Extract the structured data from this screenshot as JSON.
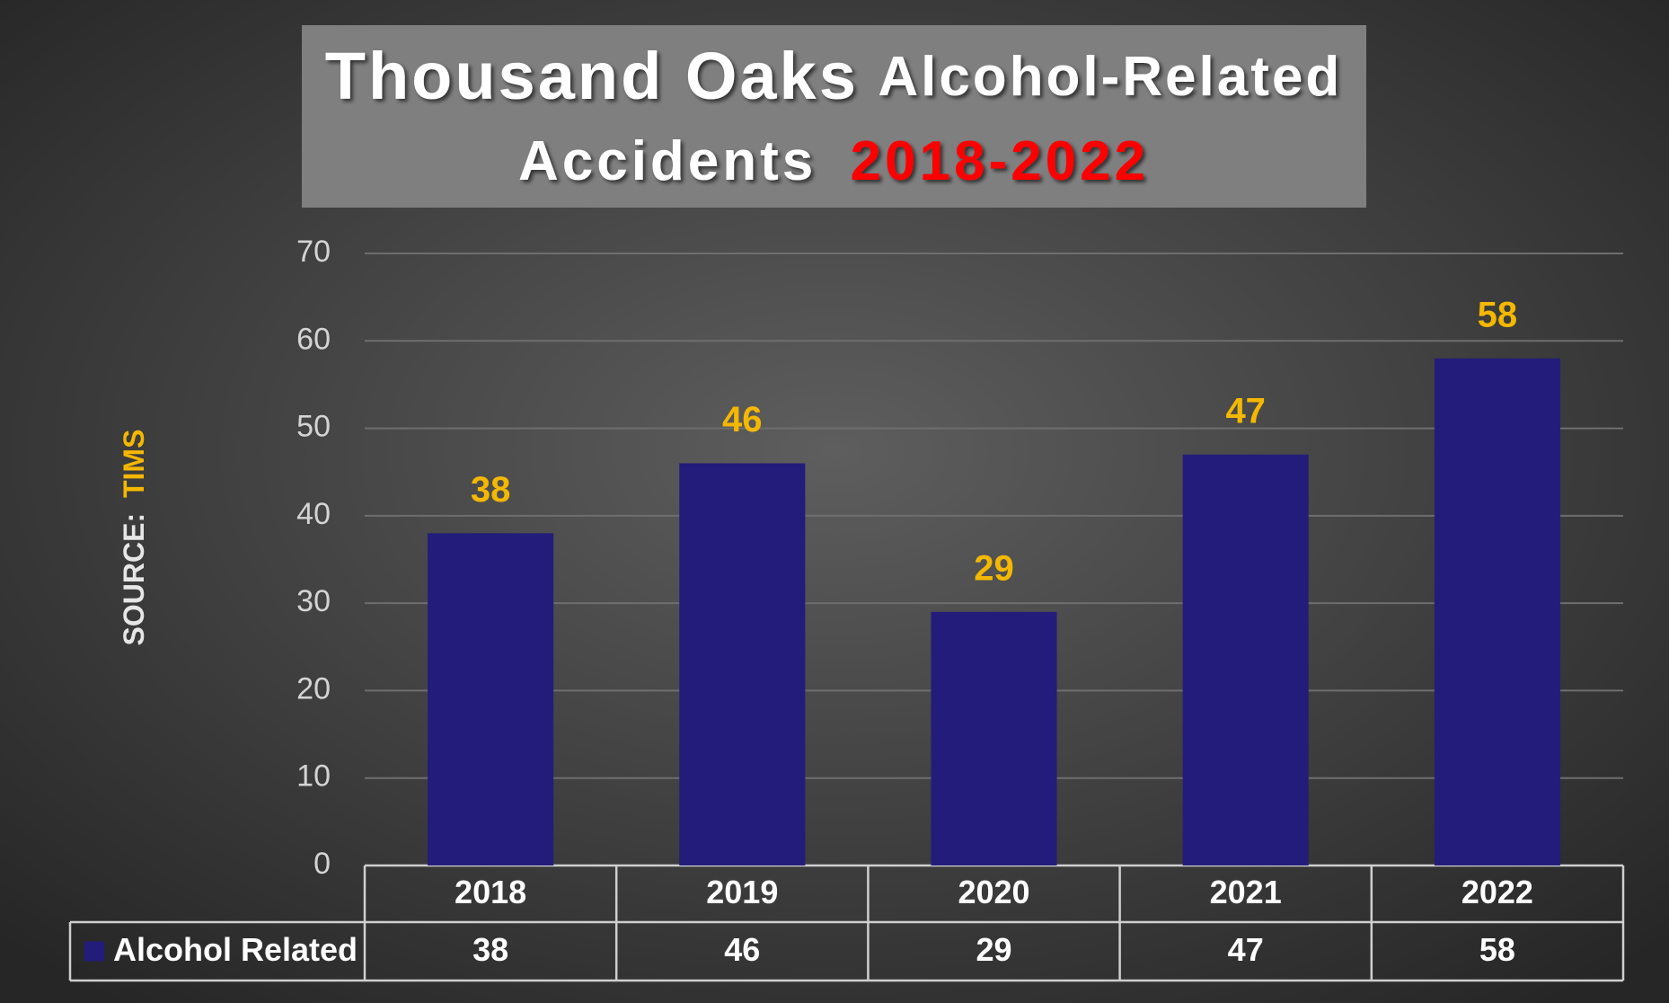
{
  "chart_data": {
    "type": "bar",
    "title": [
      "Thousand Oaks",
      "Alcohol-Related",
      "Accidents",
      "2018-2022"
    ],
    "source_label": "SOURCE:",
    "source": "TIMS",
    "categories": [
      "2018",
      "2019",
      "2020",
      "2021",
      "2022"
    ],
    "series": [
      {
        "name": "Alcohol Related",
        "color": "#241c7a",
        "values": [
          38,
          46,
          29,
          47,
          58
        ]
      }
    ],
    "ylim": [
      0,
      70
    ],
    "yticks": [
      0,
      10,
      20,
      30,
      40,
      50,
      60,
      70
    ],
    "grid": true
  }
}
